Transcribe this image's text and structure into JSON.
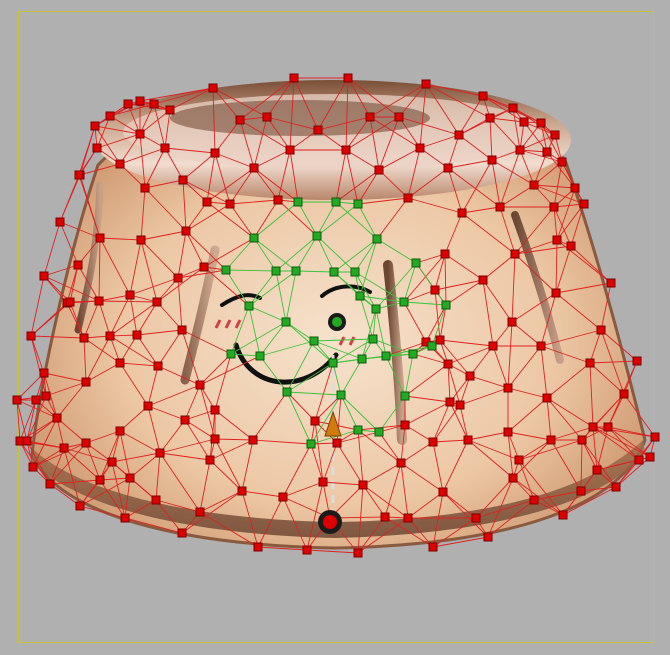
{
  "editor": {
    "view": "mesh-deform",
    "colors": {
      "background": "#b0b0b0",
      "frame": "#c8c23a",
      "pinned_point": "#dd0000",
      "pinned_point_stroke": "#7a0000",
      "free_point": "#22aa22",
      "free_point_stroke": "#0d5a0d",
      "mesh_edge_red": "#e02020",
      "mesh_edge_green": "#3cc23c",
      "handle_orange": "#d07a10"
    },
    "icons": {
      "pivot": "pivot-handle-icon",
      "anchor": "anchor-handle-icon",
      "origin": "origin-handle-icon"
    }
  }
}
